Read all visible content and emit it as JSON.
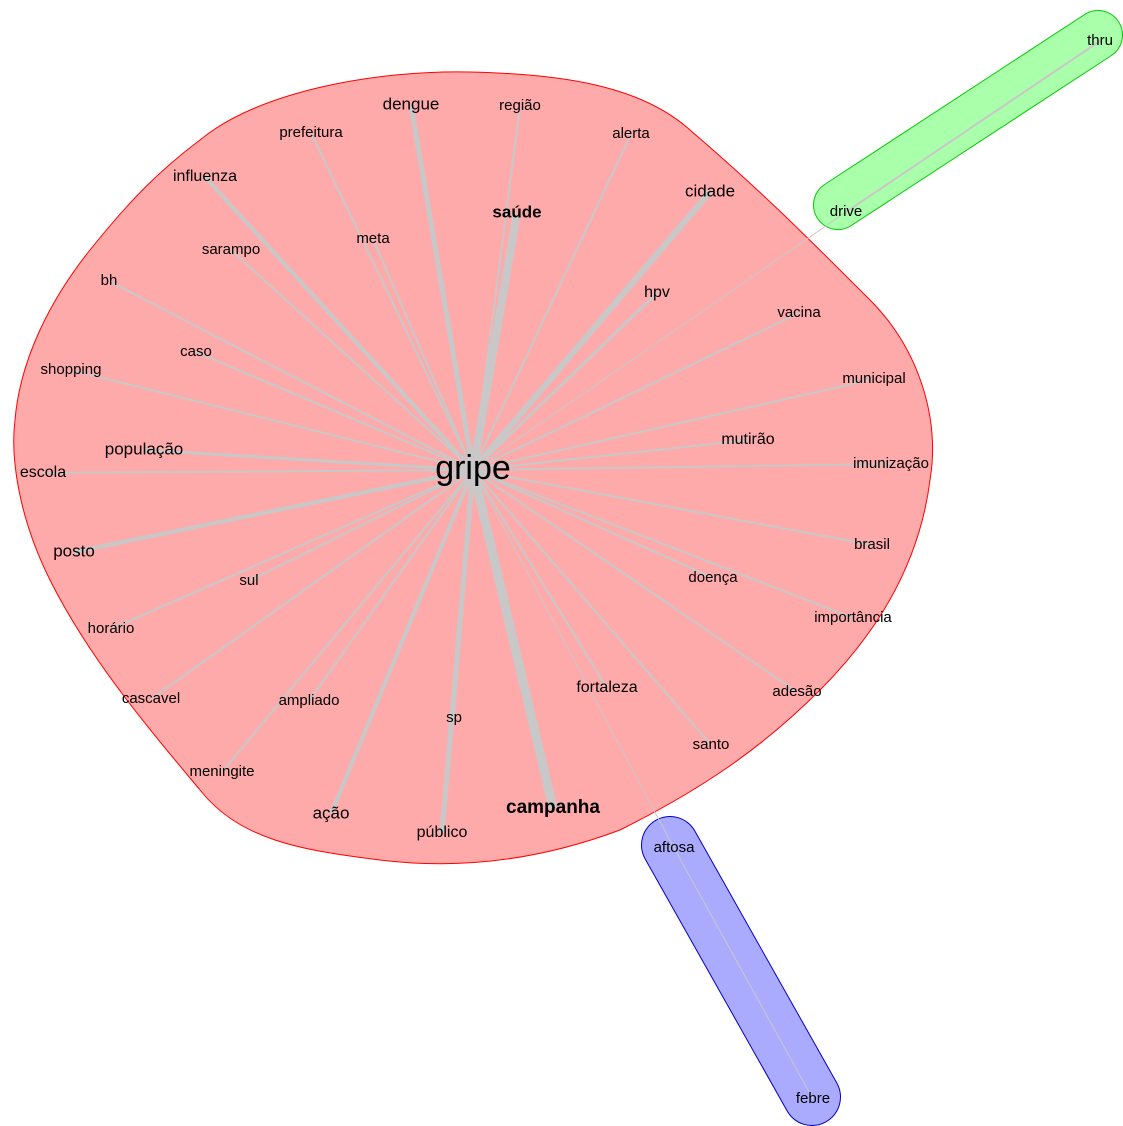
{
  "nodes": [
    {
      "label": "gripe"
    },
    {
      "label": "dengue"
    },
    {
      "label": "região"
    },
    {
      "label": "prefeitura"
    },
    {
      "label": "alerta"
    },
    {
      "label": "influenza"
    },
    {
      "label": "cidade"
    },
    {
      "label": "saúde"
    },
    {
      "label": "meta"
    },
    {
      "label": "sarampo"
    },
    {
      "label": "bh"
    },
    {
      "label": "hpv"
    },
    {
      "label": "vacina"
    },
    {
      "label": "caso"
    },
    {
      "label": "shopping"
    },
    {
      "label": "municipal"
    },
    {
      "label": "população"
    },
    {
      "label": "mutirão"
    },
    {
      "label": "escola"
    },
    {
      "label": "imunização"
    },
    {
      "label": "posto"
    },
    {
      "label": "brasil"
    },
    {
      "label": "sul"
    },
    {
      "label": "doença"
    },
    {
      "label": "importância"
    },
    {
      "label": "horário"
    },
    {
      "label": "fortaleza"
    },
    {
      "label": "cascavel"
    },
    {
      "label": "ampliado"
    },
    {
      "label": "adesão"
    },
    {
      "label": "sp"
    },
    {
      "label": "santo"
    },
    {
      "label": "meningite"
    },
    {
      "label": "ação"
    },
    {
      "label": "campanha"
    },
    {
      "label": "público"
    },
    {
      "label": "drive"
    },
    {
      "label": "thru"
    },
    {
      "label": "aftosa"
    },
    {
      "label": "febre"
    }
  ]
}
